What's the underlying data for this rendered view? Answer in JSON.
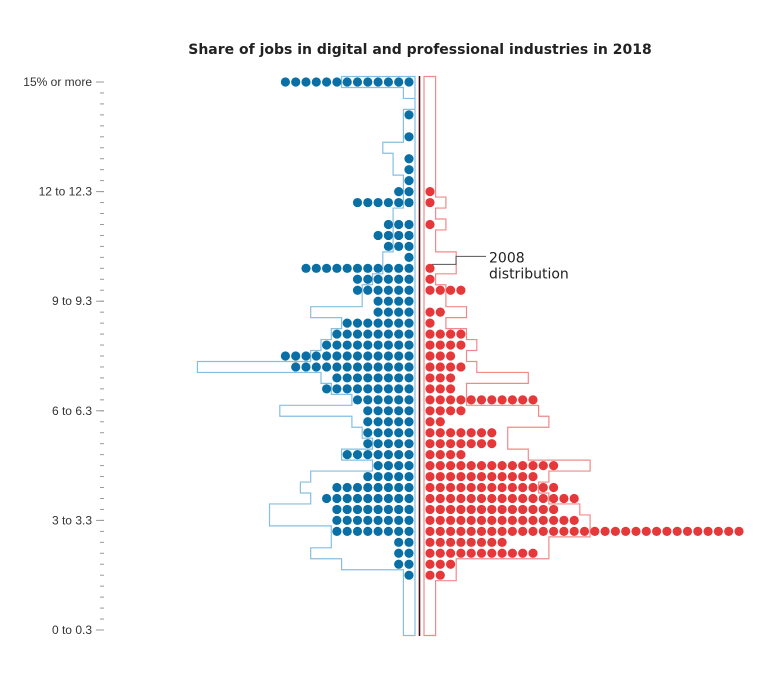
{
  "chart_data": {
    "type": "dot-histogram",
    "title": "Share of jobs in digital and professional industries in 2018",
    "y_tick_labels": [
      "15% or more",
      "12 to 12.3",
      "9 to 9.3",
      "6 to 6.3",
      "3 to 3.3",
      "0 to 0.3"
    ],
    "y_tick_values": [
      15,
      12,
      9,
      6,
      3,
      0
    ],
    "bin_width": 0.3,
    "annotation": {
      "lines": [
        "2008",
        "distribution"
      ],
      "target_bin": 9.9
    },
    "series": [
      {
        "name": "",
        "color": "#0a6fa5",
        "side": "left",
        "bins": [
          {
            "b": 15,
            "n": 13
          },
          {
            "b": 14.1,
            "n": 1
          },
          {
            "b": 13.5,
            "n": 1
          },
          {
            "b": 12.9,
            "n": 1
          },
          {
            "b": 12.6,
            "n": 1
          },
          {
            "b": 12.3,
            "n": 1
          },
          {
            "b": 12.0,
            "n": 2
          },
          {
            "b": 11.7,
            "n": 6
          },
          {
            "b": 11.1,
            "n": 3
          },
          {
            "b": 10.8,
            "n": 4
          },
          {
            "b": 10.5,
            "n": 3
          },
          {
            "b": 10.2,
            "n": 1
          },
          {
            "b": 9.9,
            "n": 11
          },
          {
            "b": 9.6,
            "n": 6
          },
          {
            "b": 9.3,
            "n": 6
          },
          {
            "b": 9.0,
            "n": 4
          },
          {
            "b": 8.7,
            "n": 4
          },
          {
            "b": 8.4,
            "n": 7
          },
          {
            "b": 8.1,
            "n": 8
          },
          {
            "b": 7.8,
            "n": 9
          },
          {
            "b": 7.5,
            "n": 13
          },
          {
            "b": 7.2,
            "n": 12
          },
          {
            "b": 6.9,
            "n": 8
          },
          {
            "b": 6.6,
            "n": 9
          },
          {
            "b": 6.3,
            "n": 6
          },
          {
            "b": 6.0,
            "n": 5
          },
          {
            "b": 5.7,
            "n": 5
          },
          {
            "b": 5.4,
            "n": 5
          },
          {
            "b": 5.1,
            "n": 5
          },
          {
            "b": 4.8,
            "n": 7
          },
          {
            "b": 4.5,
            "n": 4
          },
          {
            "b": 4.2,
            "n": 5
          },
          {
            "b": 3.9,
            "n": 8
          },
          {
            "b": 3.6,
            "n": 9
          },
          {
            "b": 3.3,
            "n": 8
          },
          {
            "b": 3.0,
            "n": 8
          },
          {
            "b": 2.7,
            "n": 8
          },
          {
            "b": 2.4,
            "n": 2
          },
          {
            "b": 2.1,
            "n": 2
          },
          {
            "b": 1.8,
            "n": 2
          },
          {
            "b": 1.5,
            "n": 1
          }
        ],
        "outline_2008": [
          {
            "b": 15,
            "n": 7
          },
          {
            "b": 14.7,
            "n": 1
          },
          {
            "b": 14.1,
            "n": 1
          },
          {
            "b": 13.8,
            "n": 1
          },
          {
            "b": 13.5,
            "n": 1
          },
          {
            "b": 13.2,
            "n": 3
          },
          {
            "b": 12.9,
            "n": 2
          },
          {
            "b": 12.6,
            "n": 2
          },
          {
            "b": 12.3,
            "n": 1
          },
          {
            "b": 12.0,
            "n": 1
          },
          {
            "b": 11.7,
            "n": 1
          },
          {
            "b": 11.4,
            "n": 2
          },
          {
            "b": 11.1,
            "n": 2
          },
          {
            "b": 10.8,
            "n": 2
          },
          {
            "b": 10.5,
            "n": 2
          },
          {
            "b": 10.2,
            "n": 3
          },
          {
            "b": 9.9,
            "n": 3
          },
          {
            "b": 9.6,
            "n": 4
          },
          {
            "b": 9.3,
            "n": 5
          },
          {
            "b": 9.0,
            "n": 5
          },
          {
            "b": 8.7,
            "n": 10
          },
          {
            "b": 8.4,
            "n": 7
          },
          {
            "b": 8.1,
            "n": 8
          },
          {
            "b": 7.8,
            "n": 9
          },
          {
            "b": 7.5,
            "n": 10
          },
          {
            "b": 7.2,
            "n": 21
          },
          {
            "b": 6.9,
            "n": 9
          },
          {
            "b": 6.6,
            "n": 8
          },
          {
            "b": 6.3,
            "n": 6
          },
          {
            "b": 6.0,
            "n": 13
          },
          {
            "b": 5.7,
            "n": 6
          },
          {
            "b": 5.4,
            "n": 5
          },
          {
            "b": 5.1,
            "n": 4
          },
          {
            "b": 4.8,
            "n": 7
          },
          {
            "b": 4.5,
            "n": 4
          },
          {
            "b": 4.2,
            "n": 10
          },
          {
            "b": 3.9,
            "n": 11
          },
          {
            "b": 3.6,
            "n": 10
          },
          {
            "b": 3.3,
            "n": 14
          },
          {
            "b": 3.0,
            "n": 14
          },
          {
            "b": 2.7,
            "n": 8
          },
          {
            "b": 2.4,
            "n": 8
          },
          {
            "b": 2.1,
            "n": 10
          },
          {
            "b": 1.8,
            "n": 7
          },
          {
            "b": 1.5,
            "n": 1
          },
          {
            "b": 1.2,
            "n": 1
          },
          {
            "b": 0.9,
            "n": 1
          },
          {
            "b": 0.6,
            "n": 1
          },
          {
            "b": 0.3,
            "n": 1
          },
          {
            "b": 0.0,
            "n": 1
          }
        ]
      },
      {
        "name": "",
        "color": "#e5383b",
        "side": "right",
        "bins": [
          {
            "b": 12.0,
            "n": 1
          },
          {
            "b": 11.7,
            "n": 1
          },
          {
            "b": 11.1,
            "n": 1
          },
          {
            "b": 9.9,
            "n": 1
          },
          {
            "b": 9.6,
            "n": 1
          },
          {
            "b": 9.3,
            "n": 4
          },
          {
            "b": 8.7,
            "n": 2
          },
          {
            "b": 8.4,
            "n": 1
          },
          {
            "b": 8.1,
            "n": 4
          },
          {
            "b": 7.8,
            "n": 4
          },
          {
            "b": 7.5,
            "n": 3
          },
          {
            "b": 7.2,
            "n": 4
          },
          {
            "b": 6.9,
            "n": 3
          },
          {
            "b": 6.6,
            "n": 3
          },
          {
            "b": 6.3,
            "n": 11
          },
          {
            "b": 6.0,
            "n": 4
          },
          {
            "b": 5.7,
            "n": 2
          },
          {
            "b": 5.4,
            "n": 7
          },
          {
            "b": 5.1,
            "n": 7
          },
          {
            "b": 4.8,
            "n": 4
          },
          {
            "b": 4.5,
            "n": 13
          },
          {
            "b": 4.2,
            "n": 11
          },
          {
            "b": 3.9,
            "n": 13
          },
          {
            "b": 3.6,
            "n": 15
          },
          {
            "b": 3.3,
            "n": 13
          },
          {
            "b": 3.0,
            "n": 15
          },
          {
            "b": 2.7,
            "n": 31
          },
          {
            "b": 2.4,
            "n": 8
          },
          {
            "b": 2.1,
            "n": 11
          },
          {
            "b": 1.8,
            "n": 3
          },
          {
            "b": 1.5,
            "n": 2
          }
        ],
        "outline_2008": [
          {
            "b": 15,
            "n": 1
          },
          {
            "b": 14.7,
            "n": 1
          },
          {
            "b": 14.4,
            "n": 1
          },
          {
            "b": 14.1,
            "n": 1
          },
          {
            "b": 13.8,
            "n": 1
          },
          {
            "b": 13.5,
            "n": 1
          },
          {
            "b": 13.2,
            "n": 1
          },
          {
            "b": 12.9,
            "n": 1
          },
          {
            "b": 12.6,
            "n": 1
          },
          {
            "b": 12.3,
            "n": 1
          },
          {
            "b": 12.0,
            "n": 1
          },
          {
            "b": 11.7,
            "n": 2
          },
          {
            "b": 11.4,
            "n": 1
          },
          {
            "b": 11.1,
            "n": 2
          },
          {
            "b": 10.8,
            "n": 1
          },
          {
            "b": 10.5,
            "n": 1
          },
          {
            "b": 10.2,
            "n": 3
          },
          {
            "b": 9.9,
            "n": 3
          },
          {
            "b": 9.6,
            "n": 1
          },
          {
            "b": 9.3,
            "n": 2
          },
          {
            "b": 9.0,
            "n": 2
          },
          {
            "b": 8.7,
            "n": 4
          },
          {
            "b": 8.4,
            "n": 2
          },
          {
            "b": 8.1,
            "n": 4
          },
          {
            "b": 7.8,
            "n": 5
          },
          {
            "b": 7.5,
            "n": 4
          },
          {
            "b": 7.2,
            "n": 5
          },
          {
            "b": 6.9,
            "n": 10
          },
          {
            "b": 6.6,
            "n": 4
          },
          {
            "b": 6.3,
            "n": 4
          },
          {
            "b": 6.0,
            "n": 11
          },
          {
            "b": 5.7,
            "n": 12
          },
          {
            "b": 5.4,
            "n": 8
          },
          {
            "b": 5.1,
            "n": 8
          },
          {
            "b": 4.8,
            "n": 10
          },
          {
            "b": 4.5,
            "n": 16
          },
          {
            "b": 4.2,
            "n": 12
          },
          {
            "b": 3.9,
            "n": 11
          },
          {
            "b": 3.6,
            "n": 12
          },
          {
            "b": 3.3,
            "n": 15
          },
          {
            "b": 3.0,
            "n": 16
          },
          {
            "b": 2.7,
            "n": 16
          },
          {
            "b": 2.4,
            "n": 12
          },
          {
            "b": 2.1,
            "n": 12
          },
          {
            "b": 1.8,
            "n": 3
          },
          {
            "b": 1.5,
            "n": 3
          },
          {
            "b": 1.2,
            "n": 1
          },
          {
            "b": 0.9,
            "n": 1
          },
          {
            "b": 0.6,
            "n": 1
          },
          {
            "b": 0.3,
            "n": 1
          },
          {
            "b": 0.0,
            "n": 1
          }
        ]
      }
    ],
    "center_line_color": "#4a0d0d"
  }
}
